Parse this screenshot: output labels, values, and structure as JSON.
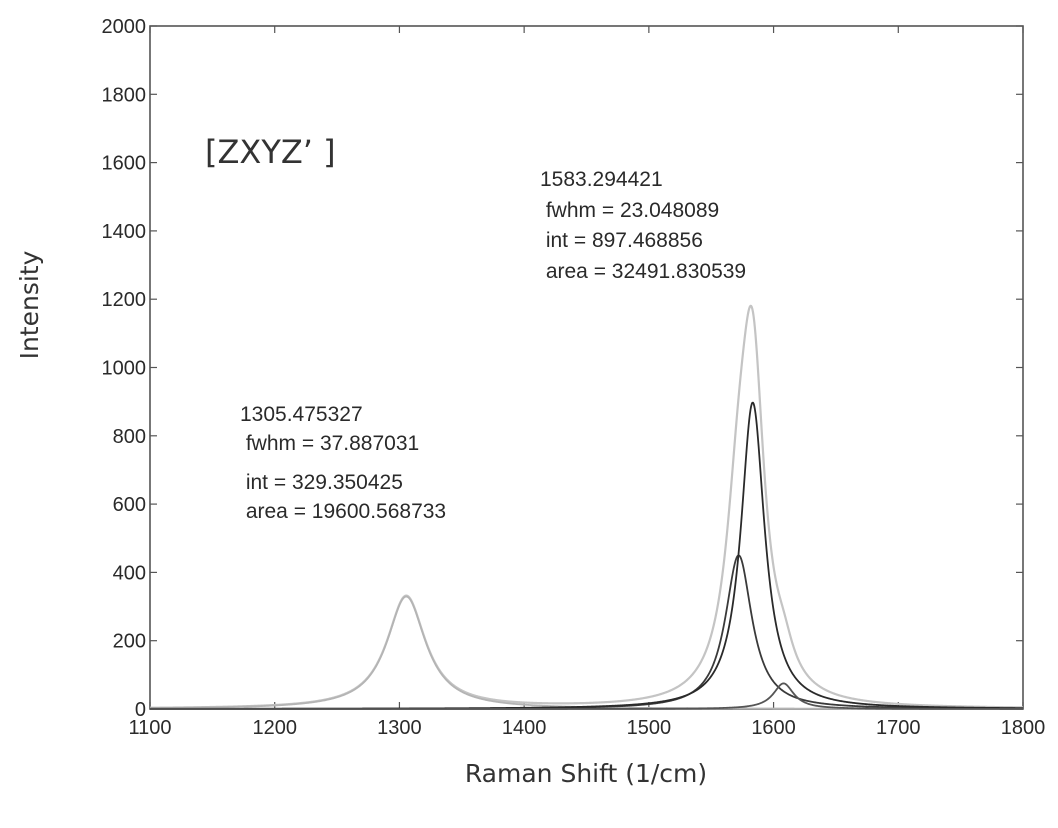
{
  "chart_data": {
    "type": "line",
    "title": "",
    "xlabel": "Raman Shift (1/cm)",
    "ylabel": "Intensity",
    "xlim": [
      1100,
      1800
    ],
    "ylim": [
      0,
      2000
    ],
    "xticks": [
      1100,
      1200,
      1300,
      1400,
      1500,
      1600,
      1700,
      1800
    ],
    "yticks": [
      0,
      200,
      400,
      600,
      800,
      1000,
      1200,
      1400,
      1600,
      1800,
      2000
    ],
    "grid": false,
    "legend": "none",
    "label": "[ZXYZ’ ]",
    "annotations": [
      {
        "lines": [
          "1305.475327",
          " fwhm = 37.887031",
          " int = 329.350425",
          " area = 19600.568733"
        ]
      },
      {
        "lines": [
          "1583.294421",
          " fwhm = 23.048089",
          " int = 897.468856",
          " area = 32491.830539"
        ]
      }
    ],
    "peaks": [
      {
        "center": 1305.475327,
        "fwhm": 37.887031,
        "amplitude": 329.350425,
        "color": "#b4b4b4"
      },
      {
        "center": 1583.294421,
        "fwhm": 23.048089,
        "amplitude": 897.468856,
        "color": "#2a2a2a"
      },
      {
        "center": 1572,
        "fwhm": 26,
        "amplitude": 450,
        "color": "#3a3a3a"
      },
      {
        "center": 1608,
        "fwhm": 20,
        "amplitude": 75,
        "color": "#555555"
      }
    ],
    "series": [
      {
        "component_peaks": [
          0,
          1,
          2,
          3
        ],
        "color": "#c4c4c4"
      },
      {
        "component_peaks": [
          0
        ],
        "color": "#b4b4b4"
      },
      {
        "component_peaks": [
          2
        ],
        "color": "#3a3a3a"
      },
      {
        "component_peaks": [
          1
        ],
        "color": "#2a2a2a"
      },
      {
        "component_peaks": [
          3
        ],
        "color": "#555555"
      }
    ]
  }
}
